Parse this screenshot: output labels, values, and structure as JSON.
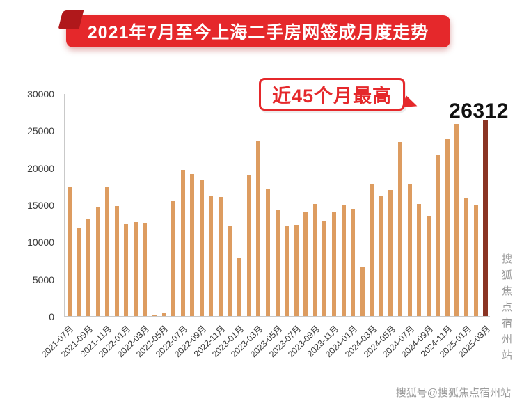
{
  "header": {
    "title": "2021年7月至今上海二手房网签成月度走势"
  },
  "annotation": {
    "text": "近45个月最高",
    "value": "26312"
  },
  "watermark": {
    "vertical": "搜狐焦点宿州站",
    "bottom": "搜狐号@搜狐焦点宿州站"
  },
  "colors": {
    "banner": "#e5282b",
    "banner_fold": "#b0181b",
    "bar": "#dd9c60",
    "bar_highlight": "#8a3423",
    "annotation_red": "#e5282b",
    "axis": "#c9c9c9",
    "tick_text": "#3a3a3a",
    "watermark": "#9a9a9a"
  },
  "chart_data": {
    "type": "bar",
    "title": "2021年7月至今上海二手房网签成月度走势",
    "xlabel": "",
    "ylabel": "",
    "ylim": [
      0,
      30000
    ],
    "yticks": [
      0,
      5000,
      10000,
      15000,
      20000,
      25000,
      30000
    ],
    "grid": false,
    "legend": false,
    "x_suffix": "月",
    "xtick_every": 2,
    "highlight_index": 44,
    "highlight_label": "26312",
    "annotation": "近45个月最高",
    "categories": [
      "2021-07",
      "2021-08",
      "2021-09",
      "2021-10",
      "2021-11",
      "2021-12",
      "2022-01",
      "2022-02",
      "2022-03",
      "2022-04",
      "2022-05",
      "2022-06",
      "2022-07",
      "2022-08",
      "2022-09",
      "2022-10",
      "2022-11",
      "2022-12",
      "2023-01",
      "2023-02",
      "2023-03",
      "2023-04",
      "2023-05",
      "2023-06",
      "2023-07",
      "2023-08",
      "2023-09",
      "2023-10",
      "2023-11",
      "2023-12",
      "2024-01",
      "2024-02",
      "2024-03",
      "2024-04",
      "2024-05",
      "2024-06",
      "2024-07",
      "2024-08",
      "2024-09",
      "2024-10",
      "2024-11",
      "2024-12",
      "2025-01",
      "2025-02",
      "2025-03"
    ],
    "values": [
      17300,
      11800,
      13000,
      14600,
      17400,
      14800,
      12400,
      12700,
      12600,
      200,
      400,
      15500,
      19700,
      19100,
      18300,
      16100,
      16000,
      12200,
      7900,
      18900,
      23600,
      17200,
      14300,
      12100,
      12300,
      14000,
      15100,
      12800,
      14100,
      15000,
      14400,
      6600,
      17800,
      16200,
      17000,
      23400,
      17800,
      15100,
      13500,
      21700,
      23800,
      25900,
      15800,
      14900,
      26312
    ]
  }
}
